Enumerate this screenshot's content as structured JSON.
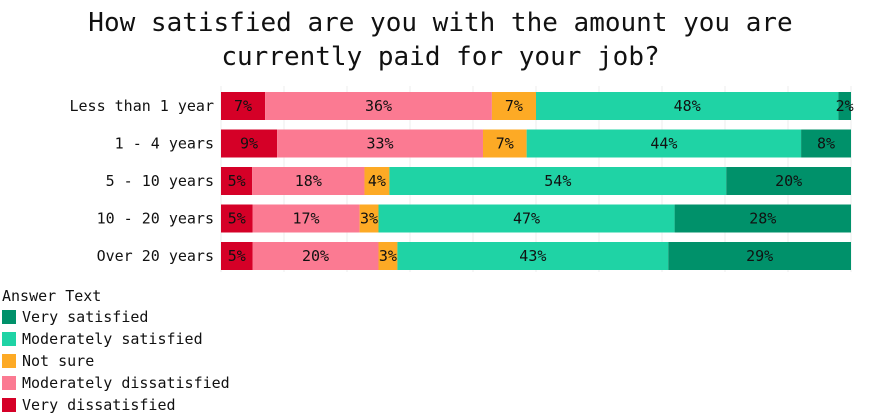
{
  "chart_data": {
    "type": "bar",
    "orientation": "horizontal",
    "stacked": true,
    "title_lines": [
      "How satisfied are you with the amount you are",
      "currently paid for your job?"
    ],
    "categories": [
      "Less than 1 year",
      "1 - 4 years",
      "5 - 10 years",
      "10 - 20 years",
      "Over 20 years"
    ],
    "series": [
      {
        "name": "Very dissatisfied",
        "color": "#d50027",
        "values": [
          7,
          9,
          5,
          5,
          5
        ]
      },
      {
        "name": "Moderately dissatisfied",
        "color": "#fb7a92",
        "values": [
          36,
          33,
          18,
          17,
          20
        ]
      },
      {
        "name": "Not sure",
        "color": "#fdaa25",
        "values": [
          7,
          7,
          4,
          3,
          3
        ]
      },
      {
        "name": "Moderately satisfied",
        "color": "#1fd3a5",
        "values": [
          48,
          44,
          54,
          47,
          43
        ]
      },
      {
        "name": "Very satisfied",
        "color": "#00916a",
        "values": [
          2,
          8,
          20,
          28,
          29
        ]
      }
    ],
    "legend_title": "Answer Text",
    "legend_order": [
      "Very satisfied",
      "Moderately satisfied",
      "Not sure",
      "Moderately dissatisfied",
      "Very dissatisfied"
    ],
    "legend_position": "bottom-left",
    "xlim": [
      0,
      100
    ],
    "grid": true
  }
}
